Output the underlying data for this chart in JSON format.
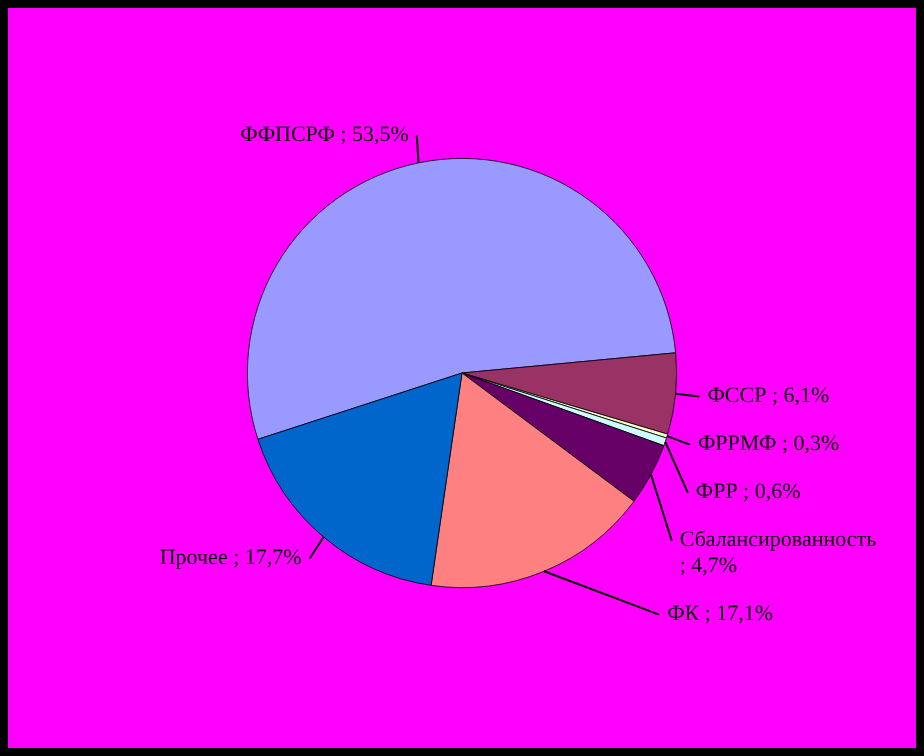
{
  "chart_data": {
    "type": "pie",
    "categories": [
      "ФФПСРФ",
      "ФССР",
      "ФРРМФ",
      "ФРР",
      "Сбалансированность",
      "ФК",
      "Прочее"
    ],
    "values": [
      53.5,
      6.1,
      0.3,
      0.6,
      4.7,
      17.1,
      17.7
    ],
    "value_labels": [
      "; 53,5%",
      "; 6,1%",
      "; 0,3%",
      "; 0,6%",
      "; 4,7%",
      "; 17,1%",
      "; 17,7%"
    ],
    "colors": [
      "#9999ff",
      "#993366",
      "#ffffcc",
      "#ccffff",
      "#660066",
      "#ff8080",
      "#0066cc"
    ]
  }
}
